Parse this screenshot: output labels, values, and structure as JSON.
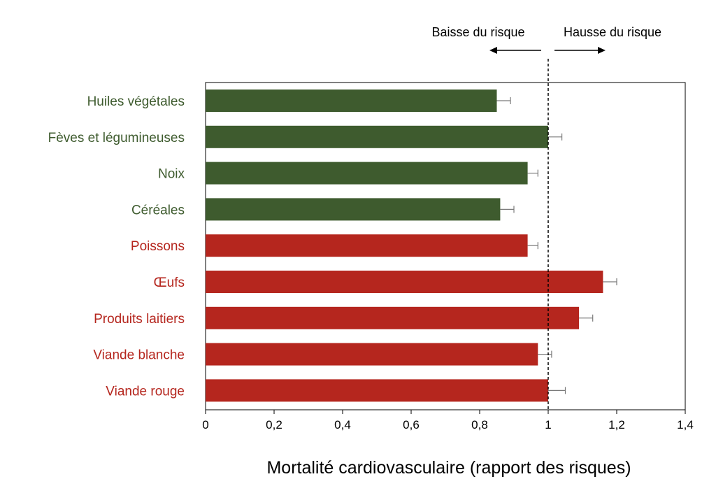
{
  "chart_data": {
    "type": "bar",
    "orientation": "horizontal",
    "categories": [
      "Huiles végétales",
      "Fèves et légumineuses",
      "Noix",
      "Céréales",
      "Poissons",
      "Œufs",
      "Produits laitiers",
      "Viande blanche",
      "Viande rouge"
    ],
    "values": [
      0.85,
      1.0,
      0.94,
      0.86,
      0.94,
      1.16,
      1.09,
      0.97,
      1.0
    ],
    "errors": [
      0.04,
      0.04,
      0.03,
      0.04,
      0.03,
      0.04,
      0.04,
      0.04,
      0.05
    ],
    "groups": [
      "plant",
      "plant",
      "plant",
      "plant",
      "animal",
      "animal",
      "animal",
      "animal",
      "animal"
    ],
    "colors": {
      "plant": "#3e5b2e",
      "animal": "#b5261e",
      "error_bar": "#7a7a7a",
      "axis": "#000000"
    },
    "xlabel": "Mortalité cardiovasculaire (rapport des risques)",
    "xlim": [
      0,
      1.4
    ],
    "xticks": [
      0,
      0.2,
      0.4,
      0.6,
      0.8,
      1.0,
      1.2,
      1.4
    ],
    "xtick_labels": [
      "0",
      "0,2",
      "0,4",
      "0,6",
      "0,8",
      "1",
      "1,2",
      "1,4"
    ],
    "reference_line": 1.0,
    "annotations": {
      "left": "Baisse du risque",
      "right": "Hausse du risque"
    },
    "grid": false
  }
}
